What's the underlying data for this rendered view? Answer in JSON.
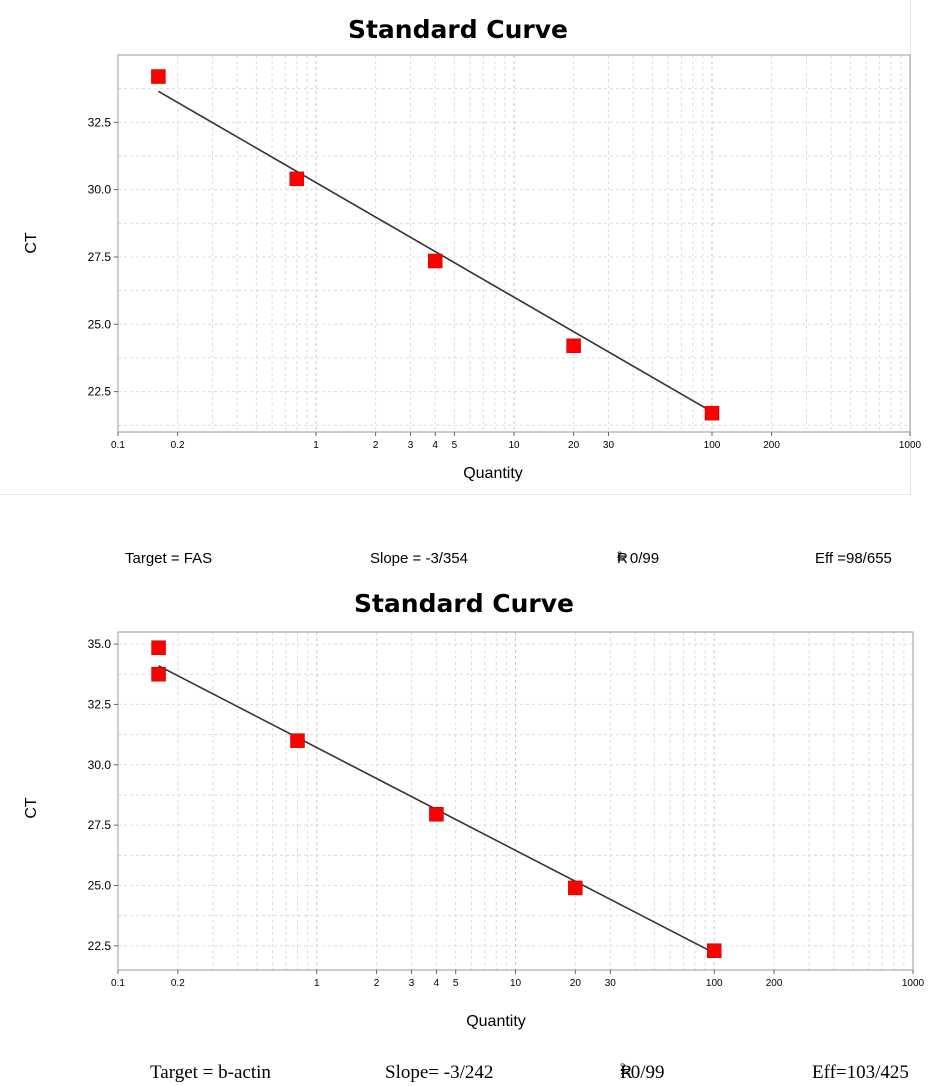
{
  "panels": [
    {
      "title": "Standard Curve",
      "xlabel": "Quantity",
      "ylabel": "CT",
      "xticks": [
        "0.1",
        "0.2",
        "1",
        "2",
        "3",
        "4",
        "5",
        "10",
        "20",
        "30",
        "100",
        "200",
        "1000"
      ],
      "yticks": [
        "22.5",
        "25.0",
        "27.5",
        "30.0",
        "32.5"
      ],
      "stats": {
        "target": "Target = FAS",
        "slope": "Slope = -3/354",
        "r2_prefix": "R",
        "r2_sup": "2",
        "r2_value": " = 0/99",
        "eff": "Eff =98/655"
      }
    },
    {
      "title": "Standard Curve",
      "xlabel": "Quantity",
      "ylabel": "CT",
      "xticks": [
        "0.1",
        "0.2",
        "1",
        "2",
        "3",
        "4",
        "5",
        "10",
        "20",
        "30",
        "100",
        "200",
        "1000"
      ],
      "yticks": [
        "22.5",
        "25.0",
        "27.5",
        "30.0",
        "32.5",
        "35.0"
      ],
      "stats": {
        "target": "Target = b-actin",
        "slope": "Slope= -3/242",
        "r2_prefix": "R",
        "r2_sup": "2",
        "r2_value": "=0/99",
        "eff": "Eff=103/425"
      }
    }
  ],
  "chart_data": [
    {
      "type": "scatter",
      "title": "Standard Curve",
      "xlabel": "Quantity",
      "ylabel": "CT",
      "x_scale": "log",
      "xlim": [
        0.1,
        1000
      ],
      "ylim": [
        21,
        35
      ],
      "grid": true,
      "marker_color": "#ff0000",
      "line_color": "#333333",
      "points": [
        {
          "x": 0.16,
          "y": 34.2
        },
        {
          "x": 0.8,
          "y": 30.4
        },
        {
          "x": 4,
          "y": 27.35
        },
        {
          "x": 20,
          "y": 24.2
        },
        {
          "x": 100,
          "y": 21.7
        }
      ],
      "fit_line": [
        {
          "x": 0.16,
          "y": 33.65
        },
        {
          "x": 100,
          "y": 21.75
        }
      ]
    },
    {
      "type": "scatter",
      "title": "Standard Curve",
      "xlabel": "Quantity",
      "ylabel": "CT",
      "x_scale": "log",
      "xlim": [
        0.1,
        1000
      ],
      "ylim": [
        21.5,
        35.5
      ],
      "grid": true,
      "marker_color": "#ff0000",
      "line_color": "#333333",
      "points": [
        {
          "x": 0.16,
          "y": 34.85
        },
        {
          "x": 0.16,
          "y": 33.75
        },
        {
          "x": 0.8,
          "y": 31.0
        },
        {
          "x": 4,
          "y": 27.95
        },
        {
          "x": 20,
          "y": 24.9
        },
        {
          "x": 100,
          "y": 22.3
        }
      ],
      "fit_line": [
        {
          "x": 0.16,
          "y": 34.1
        },
        {
          "x": 100,
          "y": 22.2
        }
      ]
    }
  ]
}
